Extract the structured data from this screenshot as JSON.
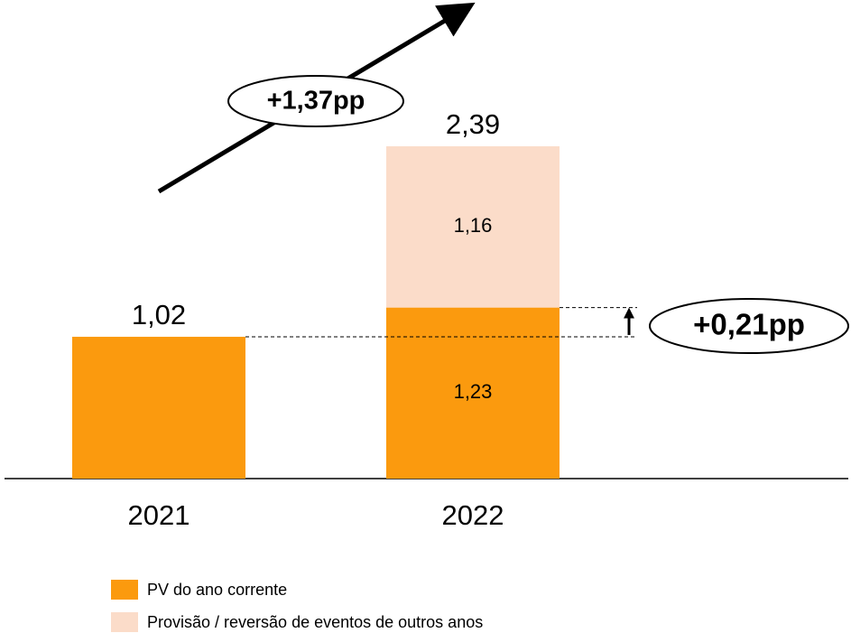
{
  "chart_data": {
    "type": "stacked_bar",
    "categories": [
      "2021",
      "2022"
    ],
    "series": [
      {
        "name": "PV do ano corrente",
        "color": "#fb9a0e",
        "values": [
          1.02,
          1.23
        ],
        "value_labels": [
          null,
          "1,23"
        ]
      },
      {
        "name": "Provisão / reversão de eventos de outros anos",
        "color": "#fbdcc9",
        "values": [
          null,
          1.16
        ],
        "value_labels": [
          null,
          "1,16"
        ]
      }
    ],
    "totals": [
      1.02,
      2.39
    ],
    "total_labels": [
      "1,02",
      "2,39"
    ],
    "annotations": [
      "+1,37pp",
      "+0,21pp"
    ]
  }
}
